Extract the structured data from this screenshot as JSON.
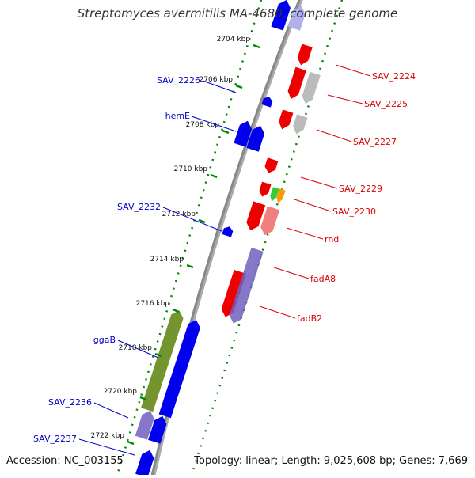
{
  "title": "Streptomyces avermitilis MA-4680, complete genome",
  "footer": {
    "accession": "Accession: NC_003155",
    "summary": "Topology: linear; Length: 9,025,608 bp; Genes: 7,669"
  },
  "ticks": [
    "2704 kbp",
    "2706 kbp",
    "2708 kbp",
    "2710 kbp",
    "2712 kbp",
    "2714 kbp",
    "2716 kbp",
    "2718 kbp",
    "2720 kbp",
    "2722 kbp"
  ],
  "labels_left": [
    "SAV_2226",
    "hemE",
    "SAV_2232",
    "ggaB",
    "SAV_2236",
    "SAV_2237"
  ],
  "labels_right": [
    "SAV_2224",
    "SAV_2225",
    "SAV_2227",
    "SAV_2229",
    "SAV_2230",
    "rnd",
    "fadA8",
    "fadB2"
  ],
  "colors": {
    "forward_gene": "#0000ee",
    "reverse_gene": "#ee0000",
    "pseudo_gene": "#bbbbbb",
    "rna_green": "#33cc33",
    "rna_orange": "#ff9900",
    "olive": "#6b8e23",
    "purple": "#7060c0",
    "pink": "#f08080",
    "left_label": "#0000cc",
    "right_label": "#dd0000",
    "dotted_line": "#008800",
    "backbone": "#888888"
  }
}
